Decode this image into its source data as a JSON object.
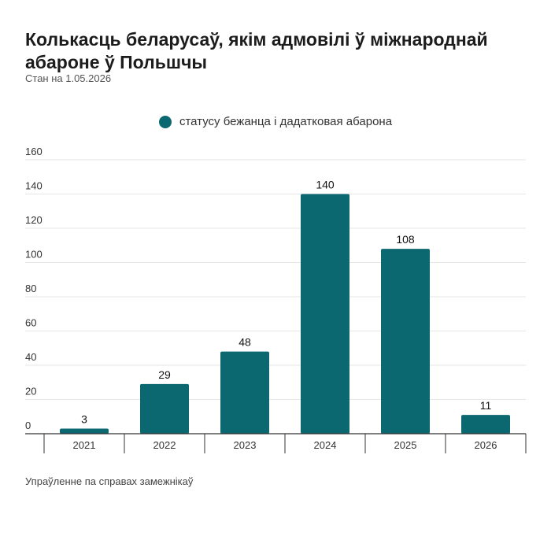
{
  "title": "Колькасць беларусаў, якім адмовілі ў міжнароднай абароне ў Польшчы",
  "subtitle": "Стан на 1.05.2026",
  "source": "Упраўленне па справах замежнікаў",
  "colors": {
    "bar": "#0b6770",
    "grid": "#e6e6e6",
    "axis": "#333333"
  },
  "chart_data": {
    "type": "bar",
    "title": "Колькасць беларусаў, якім адмовілі ў міжнароднай абароне ў Польшчы",
    "xlabel": "",
    "ylabel": "",
    "categories": [
      "2021",
      "2022",
      "2023",
      "2024",
      "2025",
      "2026"
    ],
    "series": [
      {
        "name": "статусу бежанца і дадатковая абарона",
        "values": [
          3,
          29,
          48,
          140,
          108,
          11
        ]
      }
    ],
    "ylim": [
      0,
      160
    ],
    "yticks": [
      0,
      20,
      40,
      60,
      80,
      100,
      120,
      140,
      160
    ],
    "grid": true,
    "legend_position": "top-center",
    "data_labels": true
  }
}
